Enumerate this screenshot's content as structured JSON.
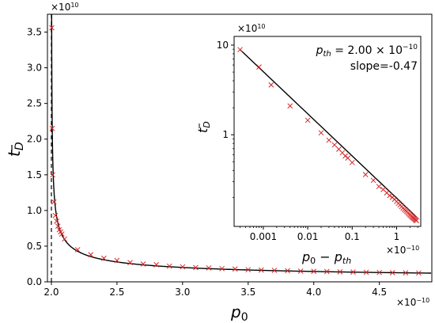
{
  "chart_data": [
    {
      "type": "scatter",
      "xlabel": "p0",
      "ylabel": "tD",
      "x_exponent_label": "×10",
      "x_exponent_power": "−10",
      "y_exponent_label": "×10",
      "y_exponent_power": "10",
      "xlim": [
        1.97,
        4.9
      ],
      "ylim": [
        0,
        3.75
      ],
      "x_ticks": [
        2.0,
        2.5,
        3.0,
        3.5,
        4.0,
        4.5
      ],
      "x_tick_labels": [
        "2.0",
        "2.5",
        "3.0",
        "3.5",
        "4.0",
        "4.5"
      ],
      "y_ticks": [
        0.0,
        0.5,
        1.0,
        1.5,
        2.0,
        2.5,
        3.0,
        3.5
      ],
      "y_tick_labels": [
        "0.0",
        "0.5",
        "1.0",
        "1.5",
        "2.0",
        "2.5",
        "3.0",
        "3.5"
      ],
      "vline_x": 2.0,
      "marker_color": "#d62728",
      "line_color": "#000000",
      "series": [
        {
          "x": [
            2.003,
            2.006,
            2.01,
            2.02,
            2.03,
            2.04,
            2.05,
            2.06,
            2.07,
            2.08,
            2.1,
            2.2,
            2.3,
            2.4,
            2.5,
            2.6,
            2.7,
            2.8,
            2.9,
            3.0,
            3.1,
            3.2,
            3.3,
            3.4,
            3.5,
            3.6,
            3.7,
            3.8,
            3.9,
            4.0,
            4.1,
            4.2,
            4.3,
            4.4,
            4.5,
            4.6,
            4.7,
            4.8
          ],
          "y": [
            3.56,
            2.15,
            1.5,
            1.12,
            0.93,
            0.85,
            0.78,
            0.73,
            0.7,
            0.67,
            0.6,
            0.45,
            0.38,
            0.33,
            0.3,
            0.27,
            0.25,
            0.24,
            0.22,
            0.21,
            0.2,
            0.195,
            0.185,
            0.18,
            0.17,
            0.165,
            0.16,
            0.155,
            0.15,
            0.147,
            0.144,
            0.14,
            0.137,
            0.134,
            0.131,
            0.128,
            0.126,
            0.124
          ]
        }
      ],
      "fit": {
        "p_th": 2.0,
        "slope": -0.47
      }
    },
    {
      "type": "scatter",
      "inset": true,
      "log_x": true,
      "log_y": true,
      "xlabel": "p0 − pth",
      "ylabel": "tD",
      "x_exponent_label": "×10",
      "x_exponent_power": "−10",
      "y_exponent_label": "×10",
      "y_exponent_power": "10",
      "xlim": [
        0.00022,
        3.5
      ],
      "ylim": [
        0.095,
        12.5
      ],
      "x_ticks": [
        0.001,
        0.01,
        0.1,
        1
      ],
      "x_tick_labels": [
        "0.001",
        "0.01",
        "0.1",
        "1"
      ],
      "y_ticks": [
        1,
        10
      ],
      "y_tick_labels": [
        "1",
        "10"
      ],
      "legend_text": {
        "pth_prefix": "p",
        "pth_sub": "th",
        "pth_value": " = 2.00 × 10",
        "pth_power": "−10",
        "slope_text": "slope=-0.47"
      },
      "series": [
        {
          "x": [
            0.0003,
            0.0008,
            0.0015,
            0.004,
            0.01,
            0.02,
            0.03,
            0.04,
            0.05,
            0.06,
            0.07,
            0.08,
            0.1,
            0.2,
            0.3,
            0.4,
            0.5,
            0.6,
            0.7,
            0.8,
            0.9,
            1.0,
            1.1,
            1.2,
            1.3,
            1.4,
            1.5,
            1.6,
            1.7,
            1.8,
            1.9,
            2.0,
            2.1,
            2.2,
            2.3,
            2.4,
            2.5,
            2.6,
            2.7,
            2.8
          ],
          "y": [
            8.9,
            5.7,
            3.6,
            2.1,
            1.45,
            1.05,
            0.87,
            0.77,
            0.69,
            0.63,
            0.58,
            0.55,
            0.49,
            0.36,
            0.31,
            0.265,
            0.245,
            0.225,
            0.21,
            0.2,
            0.19,
            0.18,
            0.172,
            0.165,
            0.158,
            0.152,
            0.147,
            0.143,
            0.139,
            0.135,
            0.131,
            0.128,
            0.125,
            0.122,
            0.12,
            0.118,
            0.116,
            0.114,
            0.112,
            0.11
          ]
        }
      ]
    }
  ]
}
